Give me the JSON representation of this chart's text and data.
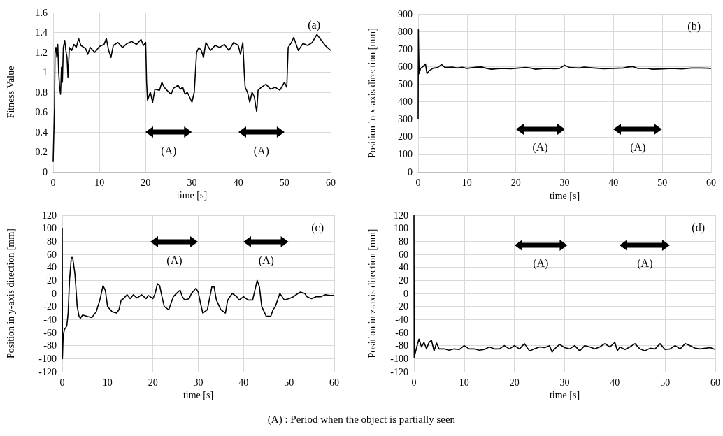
{
  "chart_data": [
    {
      "type": "line",
      "title": "(a)",
      "xlabel": "time [s]",
      "ylabel": "Fitness Value",
      "xlim": [
        0,
        60
      ],
      "xticks": [
        0,
        10,
        20,
        30,
        40,
        50,
        60
      ],
      "ylim": [
        0,
        1.6
      ],
      "yticks": [
        0,
        0.2,
        0.4,
        0.6,
        0.8,
        1,
        1.2,
        1.4,
        1.6
      ],
      "grid": true,
      "marker": "none",
      "line_style": "solid",
      "x": [
        0,
        0.1,
        0.3,
        0.4,
        0.6,
        0.8,
        1.0,
        1.2,
        1.4,
        1.6,
        1.8,
        2.0,
        2.2,
        2.5,
        2.8,
        3.0,
        3.2,
        3.5,
        4,
        4.5,
        5,
        5.5,
        6,
        7,
        7.5,
        8,
        9,
        10,
        11,
        11.5,
        12,
        12.5,
        13,
        14,
        15,
        16,
        17,
        18,
        19,
        19.5,
        20,
        20.2,
        20.4,
        21,
        21.5,
        22,
        23,
        23.5,
        24,
        25,
        25.5,
        26,
        27,
        27.5,
        28,
        28.5,
        29,
        30,
        30.5,
        31,
        31.5,
        32,
        32.5,
        33,
        34,
        35,
        36,
        37,
        38,
        39,
        40,
        40.5,
        41,
        41.3,
        41.5,
        42,
        42.5,
        43,
        43.5,
        44,
        44.3,
        45,
        46,
        47,
        48,
        49,
        50,
        50.5,
        50.8,
        51.5,
        52,
        53,
        54,
        55,
        56,
        57,
        58,
        59,
        60
      ],
      "series": [
        {
          "color": "#000000",
          "values": [
            0.1,
            0.3,
            0.65,
            1.2,
            1.25,
            1.15,
            1.28,
            1.0,
            0.85,
            0.78,
            1.05,
            0.9,
            1.25,
            1.32,
            1.2,
            1.15,
            0.95,
            1.25,
            1.22,
            1.28,
            1.25,
            1.34,
            1.27,
            1.24,
            1.18,
            1.25,
            1.2,
            1.26,
            1.28,
            1.34,
            1.22,
            1.15,
            1.27,
            1.3,
            1.25,
            1.29,
            1.31,
            1.28,
            1.33,
            1.27,
            1.3,
            0.9,
            0.72,
            0.8,
            0.7,
            0.83,
            0.82,
            0.9,
            0.85,
            0.8,
            0.78,
            0.84,
            0.87,
            0.83,
            0.85,
            0.78,
            0.8,
            0.7,
            0.8,
            1.2,
            1.25,
            1.22,
            1.15,
            1.3,
            1.22,
            1.27,
            1.25,
            1.28,
            1.22,
            1.3,
            1.27,
            1.18,
            1.3,
            1.0,
            0.85,
            0.8,
            0.7,
            0.8,
            0.75,
            0.6,
            0.82,
            0.85,
            0.88,
            0.83,
            0.85,
            0.82,
            0.9,
            0.85,
            1.25,
            1.3,
            1.35,
            1.22,
            1.29,
            1.27,
            1.3,
            1.38,
            1.32,
            1.26,
            1.22
          ]
        }
      ],
      "annotations": [
        "(A)",
        "(A)"
      ]
    },
    {
      "type": "line",
      "title": "(b)",
      "xlabel": "time [s]",
      "ylabel": "Position in x-axis direction [mm]",
      "xlim": [
        0,
        60
      ],
      "xticks": [
        0,
        10,
        20,
        30,
        40,
        50,
        60
      ],
      "ylim": [
        0,
        900
      ],
      "yticks": [
        0,
        100,
        200,
        300,
        400,
        500,
        600,
        700,
        800,
        900
      ],
      "grid": true,
      "marker": "none",
      "line_style": "solid",
      "x": [
        0,
        0.05,
        0.1,
        0.2,
        0.5,
        1,
        1.5,
        1.8,
        2.2,
        3,
        4,
        4.8,
        5.5,
        7,
        8,
        9,
        10,
        12,
        13,
        14,
        15,
        17,
        19,
        22,
        23,
        24,
        26,
        28,
        29,
        30,
        31,
        33,
        34,
        36,
        38,
        40,
        42,
        43,
        44,
        45,
        47,
        48,
        50,
        52,
        54,
        56,
        58,
        60
      ],
      "series": [
        {
          "color": "#000000",
          "values": [
            300,
            810,
            700,
            560,
            590,
            600,
            615,
            560,
            575,
            590,
            595,
            612,
            595,
            597,
            592,
            596,
            590,
            597,
            598,
            590,
            585,
            590,
            588,
            595,
            592,
            585,
            590,
            588,
            590,
            608,
            595,
            592,
            597,
            592,
            588,
            590,
            592,
            598,
            600,
            590,
            590,
            585,
            587,
            590,
            587,
            592,
            592,
            590
          ]
        }
      ],
      "annotations": [
        "(A)",
        "(A)"
      ]
    },
    {
      "type": "line",
      "title": "(c)",
      "xlabel": "time [s]",
      "ylabel": "Position in y-axis direction [mm]",
      "xlim": [
        0,
        60
      ],
      "xticks": [
        0,
        10,
        20,
        30,
        40,
        50,
        60
      ],
      "ylim": [
        -120,
        120
      ],
      "yticks": [
        -120,
        -100,
        -80,
        -60,
        -40,
        -20,
        0,
        20,
        40,
        60,
        80,
        100,
        120
      ],
      "grid": true,
      "marker": "none",
      "line_style": "solid",
      "x": [
        0,
        0.05,
        0.2,
        0.5,
        1,
        1.3,
        1.6,
        2,
        2.3,
        2.8,
        3.3,
        3.7,
        4,
        4.5,
        5.5,
        6.5,
        7.5,
        8.3,
        9,
        9.5,
        10,
        11,
        12,
        12.5,
        13,
        13.5,
        14.3,
        15,
        15.7,
        16.5,
        17.5,
        18.5,
        19,
        20,
        20.5,
        21,
        21.5,
        22,
        22.5,
        23.5,
        24.5,
        25.5,
        26,
        26.5,
        27,
        28,
        28.5,
        29.5,
        30,
        30.5,
        31,
        32,
        33,
        33.5,
        34,
        35,
        36,
        36.5,
        37.5,
        38.5,
        39,
        40,
        41,
        42,
        43,
        43.5,
        44,
        45,
        46,
        46.5,
        47,
        48,
        48.5,
        49,
        50,
        51,
        52,
        52.5,
        53.5,
        54,
        55,
        56,
        57,
        58,
        59,
        60
      ],
      "series": [
        {
          "color": "#000000",
          "values": [
            100,
            -100,
            -65,
            -55,
            -50,
            -30,
            20,
            55,
            55,
            30,
            -20,
            -35,
            -38,
            -33,
            -35,
            -37,
            -28,
            -10,
            12,
            5,
            -20,
            -28,
            -30,
            -25,
            -10,
            -8,
            -2,
            -8,
            -2,
            -7,
            -2,
            -8,
            -3,
            -8,
            0,
            15,
            12,
            -5,
            -20,
            -25,
            -5,
            2,
            5,
            -5,
            -10,
            -8,
            0,
            8,
            2,
            -15,
            -30,
            -25,
            10,
            10,
            -10,
            -25,
            -30,
            -10,
            0,
            -5,
            -10,
            -5,
            -10,
            -10,
            20,
            10,
            -20,
            -35,
            -35,
            -25,
            -20,
            0,
            -5,
            -10,
            -8,
            -5,
            0,
            2,
            0,
            -5,
            -8,
            -5,
            -5,
            -2,
            -3,
            -3
          ]
        }
      ],
      "annotations": [
        "(A)",
        "(A)"
      ]
    },
    {
      "type": "line",
      "title": "(d)",
      "xlabel": "time [s]",
      "ylabel": "Position in z-axis direction [mm]",
      "xlim": [
        0,
        60
      ],
      "xticks": [
        0,
        10,
        20,
        30,
        40,
        50,
        60
      ],
      "ylim": [
        -120,
        120
      ],
      "yticks": [
        -120,
        -100,
        -80,
        -60,
        -40,
        -20,
        0,
        20,
        40,
        60,
        80,
        100,
        120
      ],
      "grid": true,
      "marker": "none",
      "line_style": "solid",
      "x": [
        0,
        0.05,
        0.3,
        0.7,
        1,
        1.5,
        2,
        2.5,
        3,
        3.5,
        4,
        4.5,
        5,
        6,
        7,
        8,
        9,
        10,
        11,
        12,
        13,
        14,
        15,
        16,
        17,
        18,
        19,
        20,
        21,
        22,
        23,
        24,
        25,
        26,
        27,
        27.5,
        28,
        29,
        30,
        31,
        32,
        33,
        34,
        35,
        36,
        37,
        38,
        39,
        40,
        40.5,
        41,
        42,
        43,
        44,
        45,
        46,
        47,
        48,
        49,
        50,
        51,
        52,
        53,
        54,
        55,
        56,
        57,
        58,
        59,
        60
      ],
      "series": [
        {
          "color": "#000000",
          "values": [
            120,
            -98,
            -90,
            -78,
            -70,
            -82,
            -75,
            -85,
            -75,
            -72,
            -88,
            -76,
            -85,
            -85,
            -87,
            -85,
            -86,
            -80,
            -85,
            -85,
            -87,
            -86,
            -82,
            -85,
            -85,
            -80,
            -85,
            -80,
            -85,
            -77,
            -88,
            -85,
            -82,
            -83,
            -80,
            -90,
            -85,
            -78,
            -83,
            -85,
            -80,
            -88,
            -80,
            -82,
            -85,
            -82,
            -77,
            -82,
            -75,
            -88,
            -82,
            -86,
            -82,
            -77,
            -85,
            -88,
            -84,
            -85,
            -77,
            -86,
            -85,
            -80,
            -85,
            -77,
            -80,
            -84,
            -85,
            -84,
            -83,
            -86
          ]
        }
      ],
      "annotations": [
        "(A)",
        "(A)",
        "(A) : Period when the object is partially seen"
      ]
    }
  ]
}
